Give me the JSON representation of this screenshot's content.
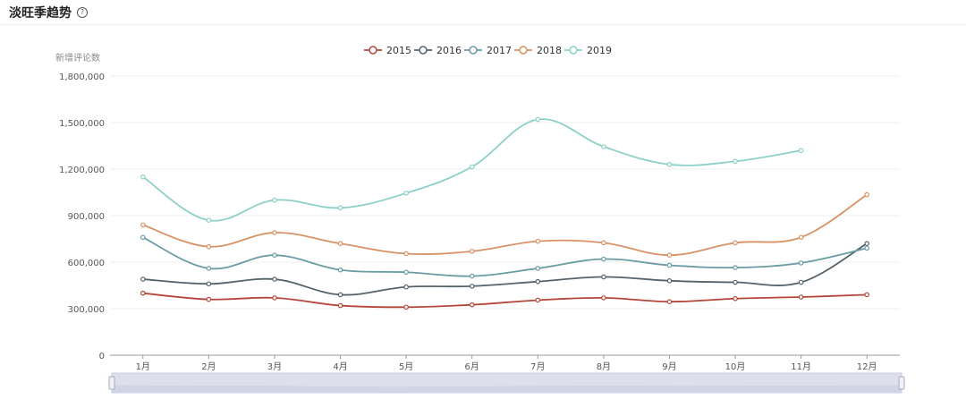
{
  "page": {
    "title": "淡旺季趋势",
    "help_icon": "question-circle-icon"
  },
  "chart_data": {
    "type": "line",
    "smooth": true,
    "ylabel": "新增评论数",
    "xlabel": "",
    "categories": [
      "1月",
      "2月",
      "3月",
      "4月",
      "5月",
      "6月",
      "7月",
      "8月",
      "9月",
      "10月",
      "11月",
      "12月"
    ],
    "ylim": [
      0,
      1800000
    ],
    "yticks": [
      0,
      300000,
      600000,
      900000,
      1200000,
      1500000,
      1800000
    ],
    "ytick_labels": [
      "0",
      "300,000",
      "600,000",
      "900,000",
      "1,200,000",
      "1,500,000",
      "1,800,000"
    ],
    "legend_position": "top-center",
    "grid": true,
    "series": [
      {
        "name": "2015",
        "color": "#b5473a",
        "values": [
          400000,
          360000,
          370000,
          320000,
          310000,
          325000,
          355000,
          370000,
          345000,
          365000,
          375000,
          390000
        ]
      },
      {
        "name": "2016",
        "color": "#55636c",
        "values": [
          490000,
          460000,
          490000,
          390000,
          440000,
          445000,
          475000,
          505000,
          480000,
          470000,
          470000,
          720000
        ]
      },
      {
        "name": "2017",
        "color": "#6a9da3",
        "values": [
          760000,
          560000,
          645000,
          550000,
          535000,
          510000,
          560000,
          620000,
          580000,
          565000,
          595000,
          690000
        ]
      },
      {
        "name": "2018",
        "color": "#d99266",
        "values": [
          840000,
          700000,
          790000,
          720000,
          655000,
          670000,
          735000,
          725000,
          645000,
          725000,
          760000,
          1035000
        ]
      },
      {
        "name": "2019",
        "color": "#8dd0c8",
        "values": [
          1150000,
          870000,
          1000000,
          950000,
          1045000,
          1215000,
          1520000,
          1345000,
          1230000,
          1250000,
          1320000,
          null
        ]
      }
    ],
    "data_zoom": {
      "start": 0,
      "end": 100
    }
  }
}
